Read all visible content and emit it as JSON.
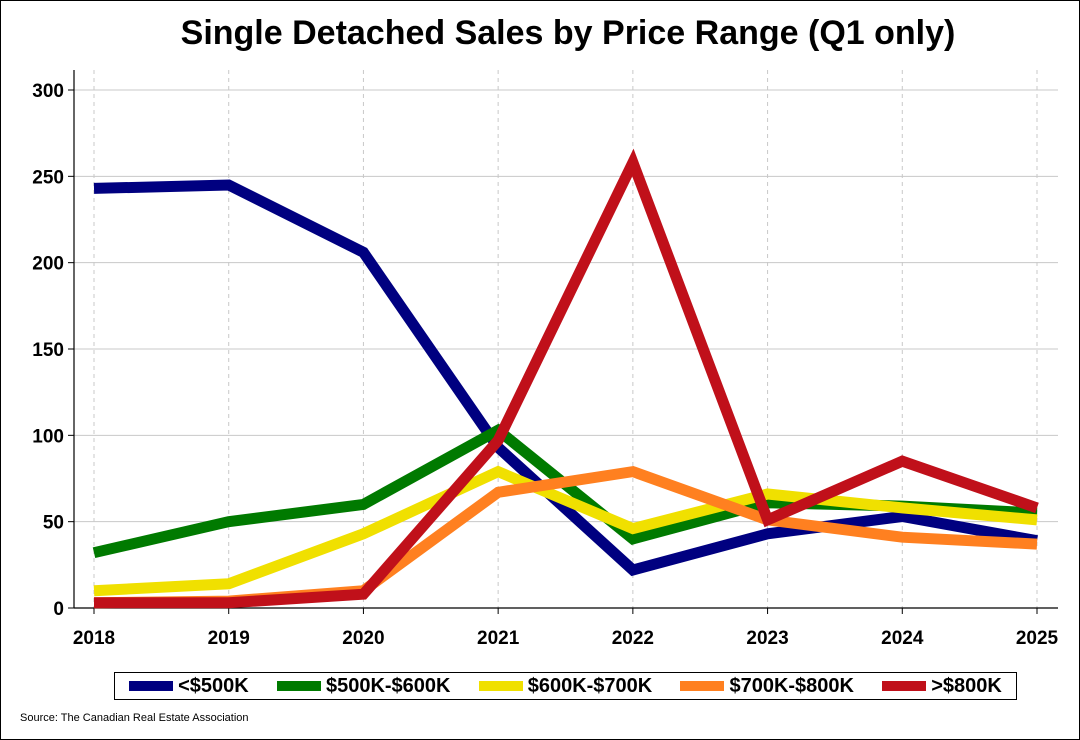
{
  "chart_data": {
    "type": "line",
    "title": "Single Detached Sales by Price Range (Q1 only)",
    "xlabel": "",
    "ylabel": "",
    "ylim": [
      0,
      300
    ],
    "yticks": [
      0,
      50,
      100,
      150,
      200,
      250,
      300
    ],
    "categories": [
      "2018",
      "2019",
      "2020",
      "2021",
      "2022",
      "2023",
      "2024",
      "2025"
    ],
    "series": [
      {
        "name": "<$500K",
        "color": "#000080",
        "values": [
          243,
          245,
          206,
          93,
          22,
          43,
          53,
          39
        ]
      },
      {
        "name": "$500K-$600K",
        "color": "#007a00",
        "values": [
          32,
          50,
          60,
          103,
          40,
          61,
          59,
          55
        ]
      },
      {
        "name": "$600K-$700K",
        "color": "#f0e000",
        "values": [
          10,
          14,
          43,
          79,
          46,
          66,
          58,
          51
        ]
      },
      {
        "name": "$700K-$800K",
        "color": "#ff8020",
        "values": [
          3,
          4,
          10,
          67,
          79,
          51,
          41,
          37
        ]
      },
      {
        "name": ">$800K",
        "color": "#c0101a",
        "values": [
          3,
          3,
          8,
          97,
          258,
          51,
          85,
          58
        ]
      }
    ],
    "grid": true,
    "legend_position": "bottom"
  },
  "source": "Source: The Canadian Real Estate Association"
}
